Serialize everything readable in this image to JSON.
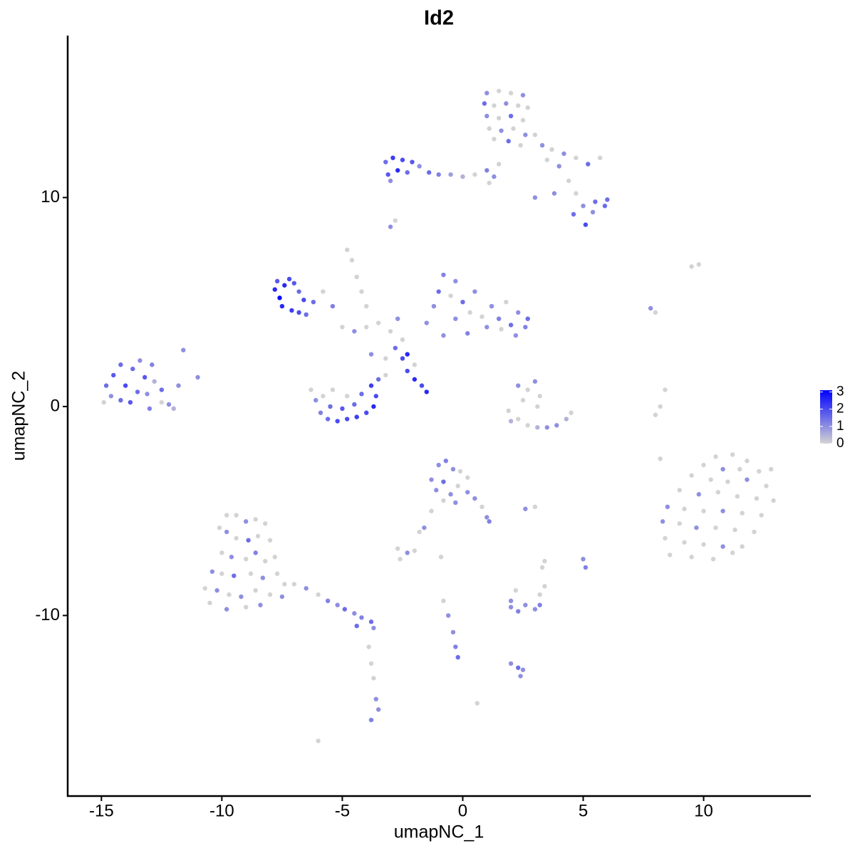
{
  "chart_data": {
    "type": "scatter",
    "title": "Id2",
    "x_label": "umapNC_1",
    "y_label": "umapNC_2",
    "xlim": [
      -16.4,
      14.45
    ],
    "ylim": [
      -18.64,
      17.75
    ],
    "xticks": [
      -15,
      -10,
      -5,
      0,
      5,
      10
    ],
    "yticks": [
      -10,
      0,
      10
    ],
    "color_low": "#d3d3d3",
    "color_high": "#0000ff",
    "colorbar_lim": [
      0,
      3.1
    ],
    "colorbar_ticks": [
      0,
      1,
      2,
      3
    ],
    "x": [
      1.0,
      1.5,
      2.0,
      2.5,
      0.9,
      1.3,
      1.8,
      2.3,
      2.7,
      1.0,
      1.5,
      2.0,
      2.5,
      1.1,
      1.6,
      2.1,
      2.6,
      1.9,
      2.4,
      1.3,
      3.0,
      3.3,
      3.7,
      4.2,
      4.7,
      5.2,
      5.7,
      3.5,
      4.0,
      4.4,
      3.8,
      4.7,
      5.0,
      5.5,
      5.9,
      4.6,
      5.1,
      5.4,
      3.0,
      6.0,
      -3.2,
      -2.9,
      -2.5,
      -2.1,
      -1.8,
      -3.1,
      -2.7,
      -2.3,
      -3.0,
      -1.4,
      -1.0,
      -0.5,
      0,
      0.5,
      1.0,
      1.3,
      1.5,
      1.1,
      -2.8,
      -3.0,
      9.5,
      9.8,
      -14.8,
      -14.5,
      -14.2,
      -14.0,
      -13.7,
      -13.4,
      -13.2,
      -12.9,
      -14.6,
      -14.2,
      -13.8,
      -13.5,
      -13.1,
      -12.8,
      -12.5,
      -12.5,
      -12.2,
      -12.0,
      -13.0,
      -14.9,
      -11.8,
      -11.6,
      -11.0,
      -7.8,
      -7.6,
      -7.4,
      -7.2,
      -7.0,
      -6.8,
      -7.5,
      -7.1,
      -6.8,
      -6.5,
      -6.6,
      -7.7,
      -6.2,
      -5.8,
      -5.4,
      -4.8,
      -4.6,
      -4.4,
      -4.2,
      -4.0,
      -5.0,
      -4.5,
      -4.0,
      -3.5,
      -3.0,
      -2.7,
      -2.5,
      -2.8,
      -2.3,
      -2.5,
      -3.2,
      -2.3,
      -2.0,
      -1.7,
      -1.5,
      -2.0,
      -3.8,
      -1.5,
      -1.2,
      -1.0,
      -0.8,
      -0.3,
      -0.5,
      0,
      0.3,
      -0.3,
      0.5,
      0.8,
      1.2,
      1.5,
      1.8,
      2.0,
      2.3,
      2.6,
      2.2,
      1.0,
      0.2,
      -0.8,
      2.7,
      1.6,
      -6.3,
      -6.1,
      -5.9,
      -5.6,
      -5.2,
      -4.8,
      -4.4,
      -4.0,
      -3.7,
      -3.6,
      -3.8,
      -3.5,
      -5.5,
      -5.0,
      -4.5,
      -4.2,
      -5.8,
      -5.4,
      -3.2,
      -4.8,
      2.3,
      2.7,
      3.0,
      3.2,
      2.5,
      3.1,
      1.9,
      2.3,
      2.7,
      3.1,
      3.5,
      3.9,
      4.3,
      4.5,
      2.0,
      7.8,
      8.0,
      8.4,
      8.2,
      8.0,
      8.2,
      -1.3,
      -1.0,
      -0.7,
      -0.4,
      -0.1,
      0.2,
      -1.1,
      -0.8,
      -0.5,
      -0.2,
      0.2,
      0.5,
      0.8,
      1.0,
      1.1,
      -0.3,
      -0.8,
      -1.3,
      -1.6,
      -1.8,
      2.6,
      3.0,
      10.5,
      11.2,
      11.8,
      10.0,
      10.8,
      11.5,
      12.3,
      12.8,
      9.5,
      10.3,
      11.0,
      11.8,
      12.6,
      9.0,
      9.8,
      10.6,
      11.4,
      12.2,
      12.9,
      8.5,
      9.2,
      10.0,
      10.8,
      11.6,
      12.4,
      8.3,
      9.0,
      9.7,
      10.5,
      11.3,
      12.1,
      8.4,
      9.2,
      10.0,
      10.8,
      11.6,
      8.6,
      9.5,
      10.4,
      11.2,
      5.0,
      5.1,
      3.4,
      3.3,
      -9.8,
      -9.4,
      -9.0,
      -8.6,
      -8.2,
      -9.8,
      -9.4,
      -8.9,
      -8.5,
      -8.0,
      -10.0,
      -9.6,
      -9.0,
      -8.6,
      -8.2,
      -7.8,
      -10.4,
      -10.0,
      -9.5,
      -8.8,
      -8.3,
      -7.7,
      -10.7,
      -10.2,
      -9.7,
      -9.2,
      -8.6,
      -8.0,
      -7.5,
      -10.5,
      -9.8,
      -9.0,
      -8.4,
      -7.4,
      -10.1,
      -7.0,
      -6.5,
      -6.0,
      -5.6,
      -5.2,
      -4.9,
      -4.5,
      -4.2,
      -3.8,
      -3.7,
      -4.4,
      -3.9,
      -3.8,
      -3.7,
      -3.6,
      -3.5,
      -3.8,
      -6.0,
      -2.7,
      -2.3,
      -2.0,
      -2.6,
      -0.9,
      -0.8,
      -0.6,
      -0.4,
      -0.3,
      -0.2,
      0.6,
      2.0,
      2.3,
      2.6,
      3.0,
      3.2,
      2.0,
      2.2,
      3.2,
      3.4,
      2.0,
      2.3,
      2.5,
      2.4
    ],
    "y": [
      15.0,
      15.1,
      15.0,
      14.9,
      14.5,
      14.4,
      14.5,
      14.4,
      14.3,
      13.9,
      13.8,
      13.9,
      13.7,
      13.3,
      13.2,
      13.3,
      13.0,
      12.7,
      12.5,
      12.8,
      13.0,
      12.5,
      12.3,
      12.1,
      11.9,
      11.6,
      11.9,
      11.8,
      11.5,
      10.8,
      10.2,
      10.2,
      9.6,
      9.8,
      9.6,
      9.2,
      8.7,
      9.3,
      10.0,
      9.9,
      11.7,
      11.9,
      11.8,
      11.7,
      11.5,
      11.1,
      11.3,
      11.2,
      10.8,
      11.2,
      11.1,
      11.1,
      11.0,
      11.1,
      11.3,
      11.0,
      11.6,
      10.7,
      8.9,
      8.6,
      6.7,
      6.8,
      1.0,
      1.5,
      2.0,
      1.0,
      1.8,
      2.2,
      1.4,
      2.0,
      0.5,
      0.3,
      0.2,
      0.7,
      0.6,
      1.2,
      0.8,
      0.2,
      0.1,
      -0.1,
      -0.1,
      0.2,
      1.0,
      2.7,
      1.4,
      5.6,
      5.2,
      5.8,
      6.1,
      5.9,
      5.5,
      4.8,
      4.6,
      4.5,
      4.4,
      5.1,
      6.0,
      5.0,
      5.5,
      4.8,
      7.5,
      7.0,
      6.2,
      5.5,
      4.8,
      3.8,
      3.6,
      3.8,
      4.0,
      3.6,
      4.2,
      3.2,
      2.8,
      2.5,
      2.3,
      2.3,
      1.7,
      1.3,
      1.0,
      0.7,
      2.0,
      2.5,
      4.0,
      4.8,
      5.5,
      6.3,
      6.0,
      5.3,
      5.0,
      4.5,
      4.2,
      5.5,
      4.3,
      4.8,
      4.2,
      5.0,
      3.9,
      4.5,
      3.8,
      3.4,
      3.8,
      3.5,
      3.4,
      4.2,
      3.7,
      0.8,
      0.3,
      -0.3,
      -0.6,
      -0.7,
      -0.6,
      -0.5,
      -0.3,
      0,
      0.5,
      1.0,
      1.3,
      0.0,
      -0.1,
      0.1,
      0.6,
      0.5,
      0.8,
      1.5,
      0.5,
      1.0,
      0.8,
      1.2,
      0.5,
      0.3,
      0,
      -0.2,
      -0.6,
      -0.9,
      -1.0,
      -1.0,
      -0.9,
      -0.6,
      -0.3,
      -0.7,
      4.7,
      4.5,
      0.8,
      0,
      -0.4,
      -2.5,
      -3.5,
      -2.8,
      -2.6,
      -3.0,
      -3.1,
      -3.4,
      -4.0,
      -3.6,
      -4.2,
      -3.8,
      -4.1,
      -4.4,
      -4.8,
      -5.3,
      -5.5,
      -4.6,
      -4.5,
      -5.0,
      -5.8,
      -6.0,
      -4.9,
      -4.8,
      -2.4,
      -2.3,
      -2.6,
      -2.8,
      -3.0,
      -3.0,
      -3.1,
      -3.0,
      -3.3,
      -3.5,
      -3.6,
      -3.5,
      -3.8,
      -4.0,
      -4.2,
      -4.1,
      -4.3,
      -4.4,
      -4.5,
      -4.8,
      -4.9,
      -5.0,
      -5.0,
      -5.1,
      -5.2,
      -5.5,
      -5.6,
      -5.8,
      -5.8,
      -5.9,
      -6.0,
      -6.3,
      -6.5,
      -6.6,
      -6.7,
      -6.7,
      -7.1,
      -7.2,
      -7.3,
      -7.0,
      -7.3,
      -7.7,
      -7.4,
      -7.7,
      -5.2,
      -5.2,
      -5.5,
      -5.4,
      -5.6,
      -6.0,
      -6.3,
      -6.4,
      -6.2,
      -6.4,
      -7.0,
      -7.2,
      -7.3,
      -7.0,
      -7.4,
      -7.2,
      -7.9,
      -8.0,
      -8.1,
      -8.0,
      -8.2,
      -8.0,
      -8.7,
      -8.8,
      -9.0,
      -9.1,
      -8.8,
      -9.0,
      -9.1,
      -9.4,
      -9.7,
      -9.6,
      -9.5,
      -8.5,
      -5.8,
      -8.5,
      -8.7,
      -9.0,
      -9.3,
      -9.5,
      -9.7,
      -9.9,
      -10.1,
      -10.3,
      -10.6,
      -10.5,
      -11.5,
      -12.3,
      -13.0,
      -14.0,
      -14.5,
      -15.0,
      -16.0,
      -6.8,
      -7.0,
      -6.9,
      -7.3,
      -7.2,
      -9.3,
      -10.0,
      -10.8,
      -11.5,
      -12.0,
      -14.2,
      -9.6,
      -9.8,
      -9.5,
      -9.7,
      -9.5,
      -9.3,
      -8.8,
      -9.0,
      -8.6,
      -12.3,
      -12.5,
      -12.6,
      -12.9
    ],
    "values": [
      1,
      0,
      0,
      1,
      1.5,
      0,
      1,
      0,
      0,
      1,
      0,
      1.5,
      0,
      0,
      1,
      0,
      1,
      1.5,
      0,
      0,
      0,
      1,
      0,
      1,
      0,
      1.5,
      0,
      0,
      1,
      0,
      1,
      0,
      1,
      1.5,
      1.5,
      1.5,
      2,
      1,
      1,
      1.5,
      1.5,
      2.2,
      2,
      1.8,
      1,
      1.8,
      2.5,
      1.5,
      1,
      1.5,
      1.2,
      0.8,
      0.5,
      0,
      1.2,
      1,
      0,
      0,
      0,
      1,
      0,
      0,
      1.5,
      1.8,
      1.5,
      2,
      1.5,
      1,
      1.8,
      1.2,
      1,
      1.5,
      1.8,
      1.5,
      1,
      0.5,
      1.5,
      0,
      1,
      0.5,
      1.2,
      0,
      1,
      1,
      1,
      2.5,
      3,
      2.5,
      2,
      1.8,
      1.5,
      2.5,
      2.2,
      2,
      1.5,
      2,
      1.8,
      1.5,
      0,
      1.2,
      0,
      0,
      0,
      0,
      0,
      0,
      1,
      0,
      0,
      0,
      1,
      0,
      1.5,
      2.5,
      2,
      0,
      2,
      2.5,
      2,
      2.5,
      0,
      1,
      1,
      1,
      1.5,
      1.2,
      1,
      0,
      1.5,
      0,
      1,
      1,
      0,
      1,
      1.2,
      0,
      1.5,
      1,
      1.2,
      1,
      1,
      1.2,
      1,
      1.5,
      0,
      0,
      1,
      1.2,
      1.5,
      2,
      2,
      2.2,
      2,
      2.5,
      2,
      2.2,
      1.5,
      1.5,
      1.8,
      1.5,
      1.5,
      0,
      0,
      0,
      0,
      1,
      0,
      1,
      0,
      0,
      0,
      0,
      0,
      0,
      0.5,
      1,
      1,
      0.5,
      0,
      0.5,
      1,
      0,
      0,
      0,
      0,
      0,
      1,
      1,
      1.2,
      1,
      0,
      0,
      1,
      1.5,
      1,
      0,
      1,
      1,
      0,
      1,
      1.2,
      1,
      0,
      0,
      1,
      0,
      1,
      0,
      0,
      0,
      0,
      0,
      1,
      0,
      0,
      0,
      0,
      0,
      0,
      1,
      0,
      0,
      1,
      0,
      0,
      0,
      0,
      1,
      0,
      0,
      1,
      0,
      0,
      1,
      0,
      1,
      0,
      0,
      0,
      0,
      0,
      0,
      1,
      0,
      0,
      0,
      0,
      0,
      1,
      1.2,
      0,
      0,
      0,
      0,
      1,
      0,
      0,
      1,
      0,
      1.5,
      0,
      0,
      0,
      1,
      0,
      1.2,
      0,
      0,
      1,
      0,
      1.5,
      0,
      1,
      0,
      0,
      1,
      0,
      1,
      0,
      0,
      1,
      0,
      1,
      0,
      1,
      0,
      0,
      0,
      1,
      0,
      1.2,
      1,
      1.5,
      1,
      1.2,
      1.5,
      1,
      1.5,
      0,
      0,
      0,
      1,
      1,
      1.2,
      0,
      0,
      1,
      0,
      0,
      0,
      0,
      1,
      1,
      1.2,
      1.5,
      0,
      1,
      1.2,
      1,
      1,
      1.2,
      1,
      0,
      0,
      0,
      1,
      1.5,
      1,
      1
    ]
  }
}
